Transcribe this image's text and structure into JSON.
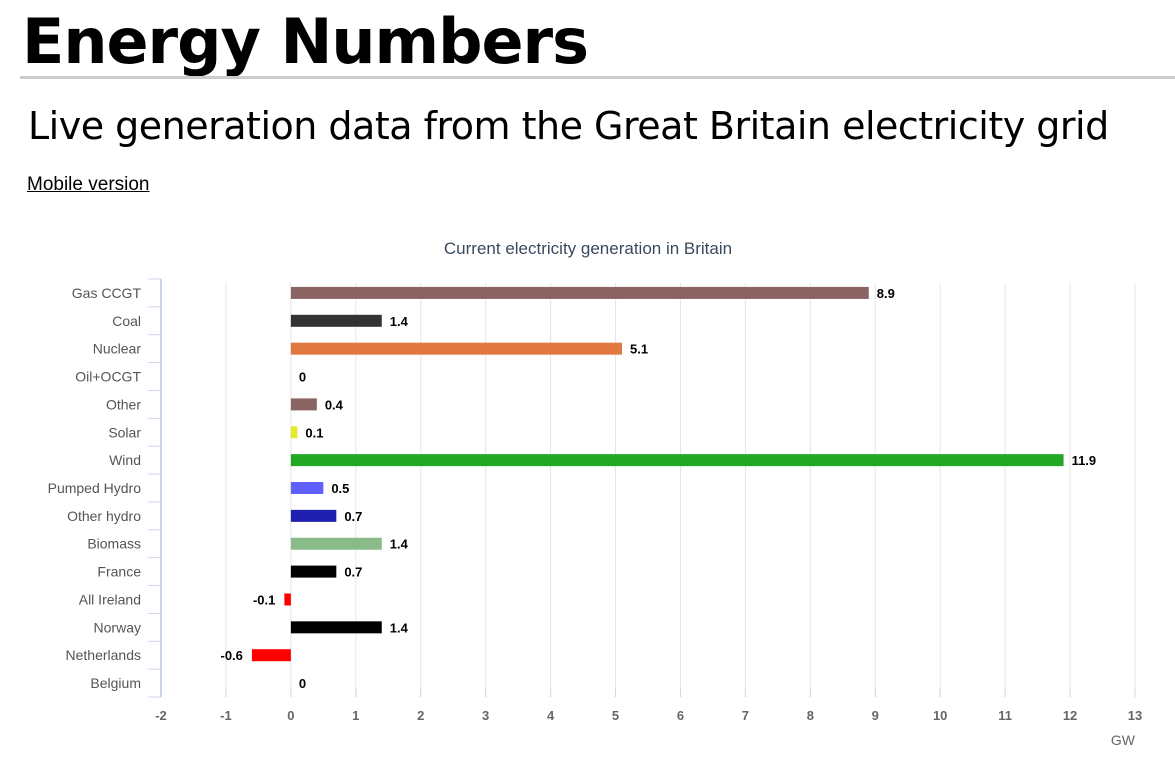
{
  "header": {
    "title": "Energy Numbers",
    "subtitle": "Live generation data from the Great Britain electricity grid",
    "mobile_link": "Mobile version"
  },
  "chart_data": {
    "type": "bar",
    "orientation": "horizontal",
    "title": "Current electricity generation in Britain",
    "xlabel": "GW",
    "xlim": [
      -2,
      13
    ],
    "xticks": [
      -2,
      -1,
      0,
      1,
      2,
      3,
      4,
      5,
      6,
      7,
      8,
      9,
      10,
      11,
      12,
      13
    ],
    "grid": true,
    "categories": [
      "Gas CCGT",
      "Coal",
      "Nuclear",
      "Oil+OCGT",
      "Other",
      "Solar",
      "Wind",
      "Pumped Hydro",
      "Other hydro",
      "Biomass",
      "France",
      "All Ireland",
      "Norway",
      "Netherlands",
      "Belgium"
    ],
    "values": [
      8.9,
      1.4,
      5.1,
      0,
      0.4,
      0.1,
      11.9,
      0.5,
      0.7,
      1.4,
      0.7,
      -0.1,
      1.4,
      -0.6,
      0
    ],
    "labels": [
      "8.9",
      "1.4",
      "5.1",
      "0",
      "0.4",
      "0.1",
      "11.9",
      "0.5",
      "0.7",
      "1.4",
      "0.7",
      "-0.1",
      "1.4",
      "-0.6",
      "0"
    ],
    "colors": [
      "#8b6363",
      "#333333",
      "#e07840",
      "#333333",
      "#8b6363",
      "#e8e82a",
      "#22a822",
      "#6060ff",
      "#2020b0",
      "#88bb88",
      "#000000",
      "#ff0000",
      "#000000",
      "#ff0000",
      "#000000"
    ]
  }
}
